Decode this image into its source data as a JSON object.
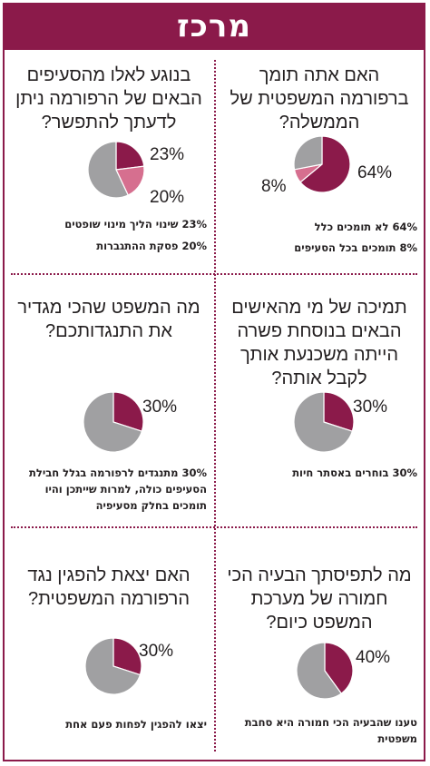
{
  "header": {
    "title": "מרכז"
  },
  "colors": {
    "brand": "#8b1a4a",
    "pie_main": "#8b1a4a",
    "pie_secondary": "#d66f8f",
    "pie_rest": "#a0a0a2"
  },
  "panels": [
    {
      "question": "האם אתה תומך ברפורמה המשפטית של הממשלה?",
      "labels": [
        "64%",
        "8%"
      ],
      "notes": [
        "64% לא תומכים כלל",
        "8% תומכים בכל הסעיפים"
      ]
    },
    {
      "question": "בנוגע לאלו מהסעיפים הבאים של הרפורמה ניתן לדעתך להתפשר?",
      "labels": [
        "23%",
        "20%"
      ],
      "notes": [
        "23% שינוי הליך מינוי שופטים",
        "20% פסקת ההתגברות"
      ]
    },
    {
      "question": "תמיכה של מי מהאישים הבאים בנוסחת פשרה הייתה משכנעת אותך לקבל אותה?",
      "labels": [
        "30%"
      ],
      "notes": [
        "30% בוחרים באסתר חיות"
      ]
    },
    {
      "question": "מה המשפט שהכי מגדיר את התנגדותכם?",
      "labels": [
        "30%"
      ],
      "notes": [
        "30% מתנגדים לרפורמה בגלל חבילת הסעיפים כולה, למרות שייתכן והיו תומכים בחלק מסעיפיה"
      ]
    },
    {
      "question": "מה לתפיסתך הבעיה הכי חמורה של מערכת המשפט כיום?",
      "labels": [
        "40%"
      ],
      "notes": [
        "טענו שהבעיה הכי חמורה היא סחבת משפטית"
      ]
    },
    {
      "question": "האם יצאת להפגין נגד הרפורמה המשפטית?",
      "labels": [
        "30%"
      ],
      "notes": [
        "יצאו להפגין לפחות פעם אחת"
      ]
    }
  ],
  "chart_data": [
    {
      "type": "pie",
      "title": "האם אתה תומך ברפורמה המשפטית של הממשלה?",
      "slices": [
        {
          "label": "לא תומכים כלל",
          "value": 64
        },
        {
          "label": "תומכים בכל הסעיפים",
          "value": 8
        },
        {
          "label": "",
          "value": 28
        }
      ]
    },
    {
      "type": "pie",
      "title": "בנוגע לאלו מהסעיפים הבאים של הרפורמה ניתן לדעתך להתפשר?",
      "slices": [
        {
          "label": "שינוי הליך מינוי שופטים",
          "value": 23
        },
        {
          "label": "פסקת ההתגברות",
          "value": 20
        },
        {
          "label": "",
          "value": 57
        }
      ]
    },
    {
      "type": "pie",
      "title": "תמיכה של מי מהאישים הבאים בנוסחת פשרה הייתה משכנעת אותך לקבל אותה?",
      "slices": [
        {
          "label": "בוחרים באסתר חיות",
          "value": 30
        },
        {
          "label": "",
          "value": 70
        }
      ]
    },
    {
      "type": "pie",
      "title": "מה המשפט שהכי מגדיר את התנגדותכם?",
      "slices": [
        {
          "label": "מתנגדים לרפורמה בגלל חבילת הסעיפים כולה, למרות שייתכן והיו תומכים בחלק מסעיפיה",
          "value": 30
        },
        {
          "label": "",
          "value": 70
        }
      ]
    },
    {
      "type": "pie",
      "title": "מה לתפיסתך הבעיה הכי חמורה של מערכת המשפט כיום?",
      "slices": [
        {
          "label": "טענו שהבעיה הכי חמורה היא סחבת משפטית",
          "value": 40
        },
        {
          "label": "",
          "value": 60
        }
      ]
    },
    {
      "type": "pie",
      "title": "האם יצאת להפגין נגד הרפורמה המשפטית?",
      "slices": [
        {
          "label": "יצאו להפגין לפחות פעם אחת",
          "value": 30
        },
        {
          "label": "",
          "value": 70
        }
      ]
    }
  ]
}
